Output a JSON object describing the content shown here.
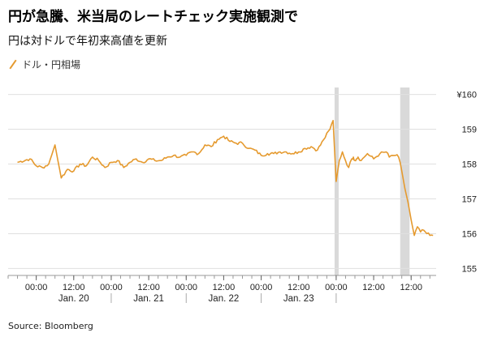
{
  "title": "円が急騰、米当局のレートチェック実施観測で",
  "subtitle": "円は対ドルで年初来高値を更新",
  "source": "Source: Bloomberg",
  "chart_data": {
    "type": "line",
    "series": [
      {
        "name": "ドル・円相場",
        "color": "#e59a2f",
        "x": [
          -6,
          -2,
          0,
          2,
          4,
          6,
          8,
          10,
          12,
          14,
          16,
          18,
          20,
          22,
          24,
          26,
          28,
          30,
          32,
          34,
          36,
          38,
          40,
          42,
          44,
          46,
          48,
          50,
          52,
          54,
          56,
          58,
          60,
          62,
          64,
          66,
          68,
          70,
          72,
          74,
          76,
          78,
          80,
          82,
          84,
          86,
          88,
          90,
          92,
          94,
          95,
          96,
          97,
          98,
          99,
          100,
          101,
          101.5,
          102,
          102.5,
          103,
          104,
          105,
          106,
          108,
          110,
          112,
          113,
          114,
          115,
          116,
          117,
          118,
          119,
          120,
          121,
          122,
          123,
          124,
          125,
          126,
          127
        ],
        "y": [
          158.05,
          158.15,
          157.95,
          157.9,
          158.0,
          158.55,
          157.6,
          157.85,
          157.8,
          158.0,
          157.95,
          158.2,
          158.1,
          157.9,
          158.05,
          158.1,
          157.9,
          158.05,
          158.15,
          158.05,
          158.15,
          158.1,
          158.1,
          158.2,
          158.25,
          158.2,
          158.25,
          158.35,
          158.3,
          158.55,
          158.5,
          158.7,
          158.8,
          158.65,
          158.6,
          158.6,
          158.45,
          158.4,
          158.25,
          158.3,
          158.3,
          158.35,
          158.35,
          158.3,
          158.35,
          158.45,
          158.5,
          158.4,
          158.7,
          159.0,
          159.25,
          157.5,
          158.1,
          158.35,
          158.1,
          157.9,
          158.15,
          158.2,
          158.1,
          158.15,
          158.2,
          158.1,
          158.2,
          158.3,
          158.15,
          158.3,
          158.35,
          158.2,
          158.25,
          158.25,
          158.2,
          157.8,
          157.3,
          156.9,
          156.4,
          155.95,
          156.2,
          156.05,
          156.1,
          156.0,
          155.95,
          155.95
        ]
      }
    ],
    "y_ticks": [
      "¥160",
      "159",
      "158",
      "157",
      "156",
      "155"
    ],
    "y_values": [
      160,
      159,
      158,
      157,
      156,
      155
    ],
    "ylim": [
      154.8,
      160.2
    ],
    "x_range": [
      -9,
      128
    ],
    "x_tick_labels": [
      {
        "x": 0,
        "label": "00:00"
      },
      {
        "x": 12,
        "label": "12:00"
      },
      {
        "x": 24,
        "label": "00:00"
      },
      {
        "x": 36,
        "label": "12:00"
      },
      {
        "x": 48,
        "label": "00:00"
      },
      {
        "x": 60,
        "label": "12:00"
      },
      {
        "x": 72,
        "label": "00:00"
      },
      {
        "x": 84,
        "label": "12:00"
      },
      {
        "x": 96,
        "label": "00:00"
      },
      {
        "x": 108,
        "label": "12:00"
      },
      {
        "x": 120,
        "label": "12:00"
      }
    ],
    "day_labels": [
      {
        "x": 12,
        "label": "Jan. 20"
      },
      {
        "x": 36,
        "label": "Jan. 21"
      },
      {
        "x": 60,
        "label": "Jan. 22"
      },
      {
        "x": 84,
        "label": "Jan. 23"
      }
    ],
    "highlight_bands": [
      {
        "x0": 95.5,
        "x1": 96.8
      },
      {
        "x0": 116.5,
        "x1": 119.5
      }
    ],
    "colors": {
      "band": "#d9d9d9",
      "grid": "#e0e0e0",
      "axis": "#999999"
    },
    "grid": true
  }
}
